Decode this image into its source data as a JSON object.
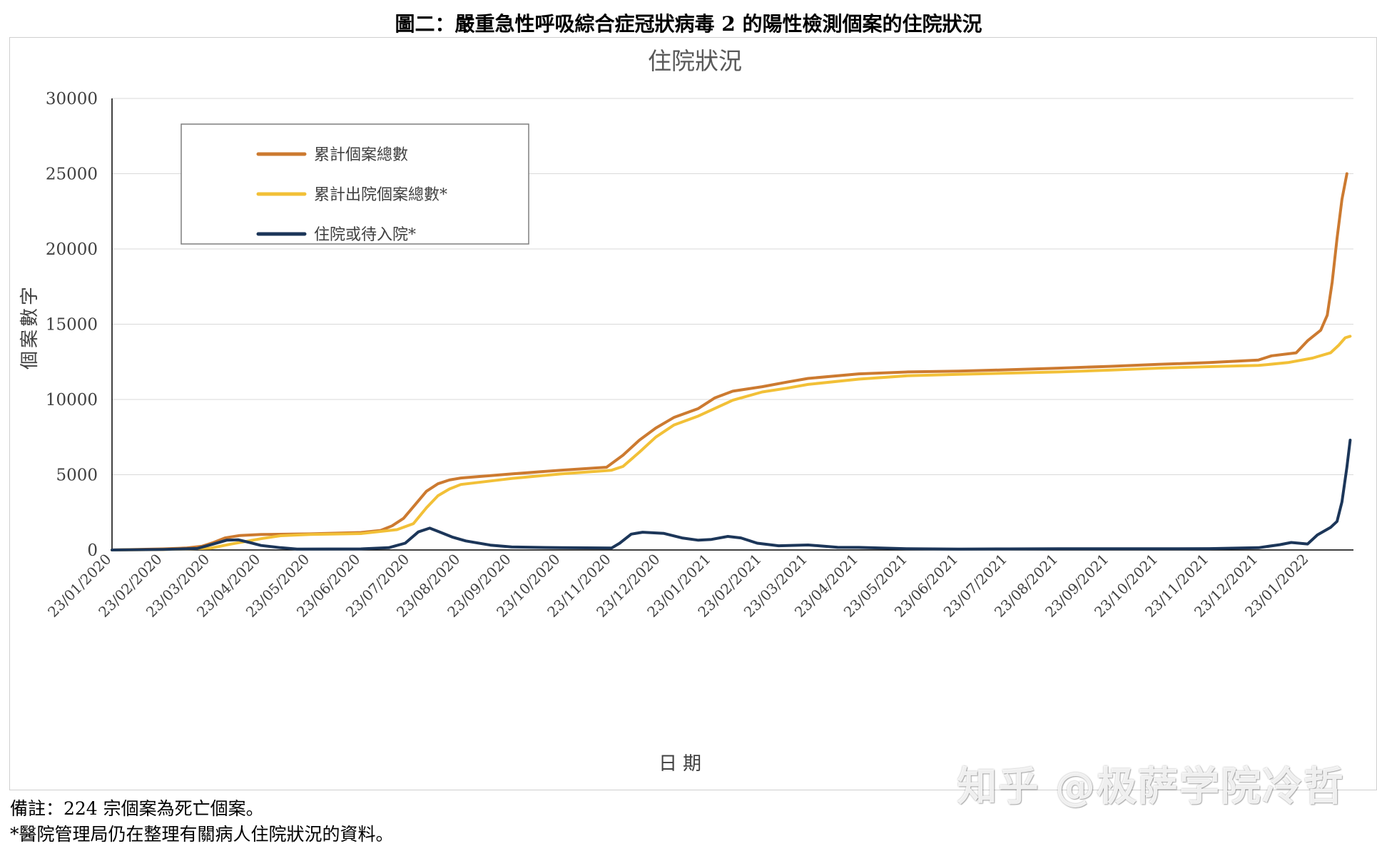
{
  "figure_title": "圖二：嚴重急性呼吸綜合症冠狀病毒 2 的陽性檢測個案的住院狀況",
  "notes": {
    "line1": "備註：224 宗個案為死亡個案。",
    "line2": "*醫院管理局仍在整理有關病人住院狀況的資料。"
  },
  "watermark": "知乎 @极萨学院冷哲",
  "chart_data": {
    "type": "line",
    "title": "住院狀況",
    "xlabel": "日期",
    "ylabel": "個案數字",
    "ylim": [
      0,
      30000
    ],
    "yticks": [
      0,
      5000,
      10000,
      15000,
      20000,
      25000,
      30000
    ],
    "xlim": [
      "23/01/2020",
      "19/02/2022"
    ],
    "xticks": [
      "23/01/2020",
      "23/02/2020",
      "23/03/2020",
      "23/04/2020",
      "23/05/2020",
      "23/06/2020",
      "23/07/2020",
      "23/08/2020",
      "23/09/2020",
      "23/10/2020",
      "23/11/2020",
      "23/12/2020",
      "23/01/2021",
      "23/02/2021",
      "23/03/2021",
      "23/04/2021",
      "23/05/2021",
      "23/06/2021",
      "23/07/2021",
      "23/08/2021",
      "23/09/2021",
      "23/10/2021",
      "23/11/2021",
      "23/12/2021",
      "23/01/2022"
    ],
    "grid": true,
    "legend_position": "top-left",
    "series": [
      {
        "name": "累計個案總數",
        "color": "#CC7A30",
        "points": [
          [
            "23/01/2020",
            0
          ],
          [
            "23/02/2020",
            70
          ],
          [
            "08/03/2020",
            130
          ],
          [
            "18/03/2020",
            250
          ],
          [
            "25/03/2020",
            500
          ],
          [
            "01/04/2020",
            800
          ],
          [
            "10/04/2020",
            960
          ],
          [
            "23/04/2020",
            1030
          ],
          [
            "23/05/2020",
            1070
          ],
          [
            "23/06/2020",
            1160
          ],
          [
            "05/07/2020",
            1300
          ],
          [
            "12/07/2020",
            1600
          ],
          [
            "19/07/2020",
            2100
          ],
          [
            "26/07/2020",
            3000
          ],
          [
            "02/08/2020",
            3900
          ],
          [
            "09/08/2020",
            4400
          ],
          [
            "16/08/2020",
            4650
          ],
          [
            "23/08/2020",
            4780
          ],
          [
            "23/09/2020",
            5050
          ],
          [
            "23/10/2020",
            5300
          ],
          [
            "20/11/2020",
            5500
          ],
          [
            "30/11/2020",
            6300
          ],
          [
            "10/12/2020",
            7300
          ],
          [
            "20/12/2020",
            8100
          ],
          [
            "31/12/2020",
            8800
          ],
          [
            "15/01/2021",
            9400
          ],
          [
            "25/01/2021",
            10100
          ],
          [
            "05/02/2021",
            10550
          ],
          [
            "23/02/2021",
            10850
          ],
          [
            "10/03/2021",
            11150
          ],
          [
            "23/03/2021",
            11400
          ],
          [
            "23/04/2021",
            11700
          ],
          [
            "23/05/2021",
            11830
          ],
          [
            "23/06/2021",
            11880
          ],
          [
            "23/07/2021",
            11970
          ],
          [
            "23/08/2021",
            12080
          ],
          [
            "23/09/2021",
            12200
          ],
          [
            "23/10/2021",
            12330
          ],
          [
            "23/11/2021",
            12450
          ],
          [
            "23/12/2021",
            12620
          ],
          [
            "31/12/2021",
            12900
          ],
          [
            "15/01/2022",
            13100
          ],
          [
            "22/01/2022",
            13900
          ],
          [
            "30/01/2022",
            14600
          ],
          [
            "03/02/2022",
            15600
          ],
          [
            "06/02/2022",
            17800
          ],
          [
            "09/02/2022",
            20700
          ],
          [
            "12/02/2022",
            23300
          ],
          [
            "15/02/2022",
            25000
          ]
        ]
      },
      {
        "name": "累計出院個案總數*",
        "color": "#F2C037",
        "points": [
          [
            "23/01/2020",
            0
          ],
          [
            "23/02/2020",
            30
          ],
          [
            "23/03/2020",
            120
          ],
          [
            "05/04/2020",
            400
          ],
          [
            "23/04/2020",
            750
          ],
          [
            "05/05/2020",
            950
          ],
          [
            "23/05/2020",
            1030
          ],
          [
            "23/06/2020",
            1090
          ],
          [
            "15/07/2020",
            1350
          ],
          [
            "25/07/2020",
            1750
          ],
          [
            "02/08/2020",
            2800
          ],
          [
            "09/08/2020",
            3600
          ],
          [
            "16/08/2020",
            4050
          ],
          [
            "23/08/2020",
            4350
          ],
          [
            "23/09/2020",
            4750
          ],
          [
            "23/10/2020",
            5050
          ],
          [
            "23/11/2020",
            5300
          ],
          [
            "30/11/2020",
            5550
          ],
          [
            "10/12/2020",
            6500
          ],
          [
            "20/12/2020",
            7500
          ],
          [
            "31/12/2020",
            8300
          ],
          [
            "15/01/2021",
            8900
          ],
          [
            "25/01/2021",
            9400
          ],
          [
            "05/02/2021",
            9950
          ],
          [
            "23/02/2021",
            10500
          ],
          [
            "10/03/2021",
            10750
          ],
          [
            "23/03/2021",
            11000
          ],
          [
            "23/04/2021",
            11350
          ],
          [
            "23/05/2021",
            11580
          ],
          [
            "23/06/2021",
            11670
          ],
          [
            "23/07/2021",
            11750
          ],
          [
            "23/08/2021",
            11830
          ],
          [
            "23/09/2021",
            11950
          ],
          [
            "23/10/2021",
            12080
          ],
          [
            "23/11/2021",
            12180
          ],
          [
            "23/12/2021",
            12260
          ],
          [
            "10/01/2022",
            12450
          ],
          [
            "25/01/2022",
            12750
          ],
          [
            "05/02/2022",
            13100
          ],
          [
            "10/02/2022",
            13600
          ],
          [
            "14/02/2022",
            14100
          ],
          [
            "17/02/2022",
            14200
          ]
        ]
      },
      {
        "name": "住院或待入院*",
        "color": "#1C3659",
        "points": [
          [
            "23/01/2020",
            0
          ],
          [
            "23/02/2020",
            40
          ],
          [
            "15/03/2020",
            100
          ],
          [
            "25/03/2020",
            400
          ],
          [
            "02/04/2020",
            650
          ],
          [
            "09/04/2020",
            680
          ],
          [
            "16/04/2020",
            500
          ],
          [
            "23/04/2020",
            300
          ],
          [
            "05/05/2020",
            150
          ],
          [
            "15/05/2020",
            60
          ],
          [
            "23/06/2020",
            70
          ],
          [
            "10/07/2020",
            150
          ],
          [
            "20/07/2020",
            450
          ],
          [
            "28/07/2020",
            1200
          ],
          [
            "04/08/2020",
            1450
          ],
          [
            "10/08/2020",
            1200
          ],
          [
            "18/08/2020",
            850
          ],
          [
            "26/08/2020",
            600
          ],
          [
            "10/09/2020",
            320
          ],
          [
            "23/09/2020",
            200
          ],
          [
            "23/10/2020",
            150
          ],
          [
            "23/11/2020",
            130
          ],
          [
            "28/11/2020",
            450
          ],
          [
            "05/12/2020",
            1050
          ],
          [
            "12/12/2020",
            1180
          ],
          [
            "25/12/2020",
            1100
          ],
          [
            "05/01/2021",
            800
          ],
          [
            "15/01/2021",
            650
          ],
          [
            "23/01/2021",
            700
          ],
          [
            "02/02/2021",
            900
          ],
          [
            "10/02/2021",
            800
          ],
          [
            "20/02/2021",
            450
          ],
          [
            "05/03/2021",
            280
          ],
          [
            "23/03/2021",
            330
          ],
          [
            "10/04/2021",
            180
          ],
          [
            "23/04/2021",
            170
          ],
          [
            "23/05/2021",
            80
          ],
          [
            "23/06/2021",
            60
          ],
          [
            "23/07/2021",
            70
          ],
          [
            "23/08/2021",
            80
          ],
          [
            "23/10/2021",
            80
          ],
          [
            "23/11/2021",
            90
          ],
          [
            "23/12/2021",
            150
          ],
          [
            "05/01/2022",
            350
          ],
          [
            "12/01/2022",
            500
          ],
          [
            "22/01/2022",
            400
          ],
          [
            "28/01/2022",
            1000
          ],
          [
            "05/02/2022",
            1500
          ],
          [
            "09/02/2022",
            1900
          ],
          [
            "12/02/2022",
            3200
          ],
          [
            "15/02/2022",
            5500
          ],
          [
            "17/02/2022",
            7300
          ]
        ]
      }
    ]
  }
}
